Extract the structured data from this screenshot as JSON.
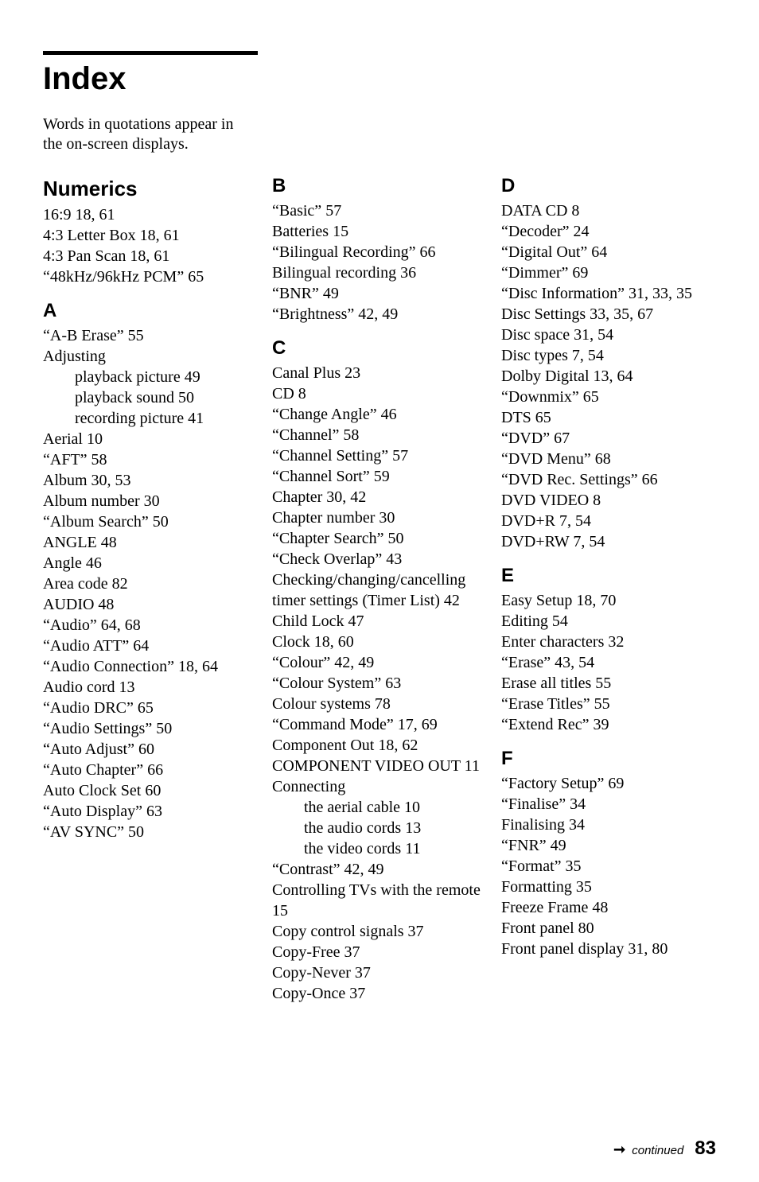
{
  "title": "Index",
  "intro": "Words in quotations appear in the on-screen displays.",
  "footer": {
    "arrow": "➞",
    "continued": "continued",
    "page": "83"
  },
  "col1_top": {
    "numerics_head": "Numerics",
    "n1": "16:9 18, 61",
    "n2": "4:3 Letter Box 18, 61",
    "n3": "4:3 Pan Scan 18, 61",
    "n4": "“48kHz/96kHz PCM” 65",
    "a_head": "A",
    "a1": "“A-B Erase” 55",
    "a2": "Adjusting",
    "a2a": "playback picture 49",
    "a2b": "playback sound 50",
    "a2c": "recording picture 41",
    "a3": "Aerial 10",
    "a4": "“AFT” 58",
    "a5": "Album 30, 53",
    "a6": "Album number 30",
    "a7": "“Album Search” 50",
    "a8": "ANGLE 48",
    "a9": "Angle 46",
    "a10": "Area code 82",
    "a11": "AUDIO 48",
    "a12": "“Audio” 64, 68",
    "a13": "“Audio ATT” 64",
    "a14": "“Audio Connection” 18, 64",
    "a15": "Audio cord 13",
    "a16": "“Audio DRC” 65",
    "a17": "“Audio Settings” 50",
    "a18": "“Auto Adjust” 60",
    "a19": "“Auto Chapter” 66",
    "a20": "Auto Clock Set 60",
    "a21": "“Auto Display” 63",
    "a22": "“AV SYNC” 50"
  },
  "col2": {
    "b_head": "B",
    "b1": "“Basic” 57",
    "b2": "Batteries 15",
    "b3": "“Bilingual Recording” 66",
    "b4": "Bilingual recording 36",
    "b5": "“BNR” 49",
    "b6": "“Brightness” 42, 49",
    "c_head": "C",
    "c1": "Canal Plus 23",
    "c2": "CD 8",
    "c3": "“Change Angle” 46",
    "c4": "“Channel” 58",
    "c5": "“Channel Setting” 57",
    "c6": "“Channel Sort” 59",
    "c7": "Chapter 30, 42",
    "c8": "Chapter number 30",
    "c9": "“Chapter Search” 50",
    "c10": "“Check Overlap” 43",
    "c11": "Checking/changing/cancelling timer settings (Timer List) 42",
    "c12": "Child Lock 47",
    "c13": "Clock 18, 60",
    "c14": "“Colour” 42, 49",
    "c15": "“Colour System” 63",
    "c16": "Colour systems 78",
    "c17": "“Command Mode” 17, 69",
    "c18": "Component Out 18, 62",
    "c19": "COMPONENT VIDEO OUT 11",
    "c20": "Connecting",
    "c20a": "the aerial cable 10",
    "c20b": "the audio cords 13",
    "c20c": "the video cords 11",
    "c21": "“Contrast” 42, 49",
    "c22": "Controlling TVs with the remote 15",
    "c23": "Copy control signals 37",
    "c24": "Copy-Free 37",
    "c25": "Copy-Never 37",
    "c26": "Copy-Once 37"
  },
  "col3": {
    "d_head": "D",
    "d1": "DATA CD 8",
    "d2": "“Decoder” 24",
    "d3": "“Digital Out” 64",
    "d4": "“Dimmer” 69",
    "d5": "“Disc Information” 31, 33, 35",
    "d6": "Disc Settings 33, 35, 67",
    "d7": "Disc space 31, 54",
    "d8": "Disc types 7, 54",
    "d9": "Dolby Digital 13, 64",
    "d10": "“Downmix” 65",
    "d11": "DTS 65",
    "d12": "“DVD” 67",
    "d13": "“DVD Menu” 68",
    "d14": "“DVD Rec. Settings” 66",
    "d15": "DVD VIDEO 8",
    "d16": "DVD+R 7, 54",
    "d17": "DVD+RW 7, 54",
    "e_head": "E",
    "e1": "Easy Setup 18, 70",
    "e2": "Editing 54",
    "e3": "Enter characters 32",
    "e4": "“Erase” 43, 54",
    "e5": "Erase all titles 55",
    "e6": "“Erase Titles” 55",
    "e7": "“Extend Rec” 39",
    "f_head": "F",
    "f1": "“Factory Setup” 69",
    "f2": "“Finalise” 34",
    "f3": "Finalising 34",
    "f4": "“FNR” 49",
    "f5": "“Format” 35",
    "f6": "Formatting 35",
    "f7": "Freeze Frame 48",
    "f8": "Front panel 80",
    "f9": "Front panel display 31, 80"
  }
}
